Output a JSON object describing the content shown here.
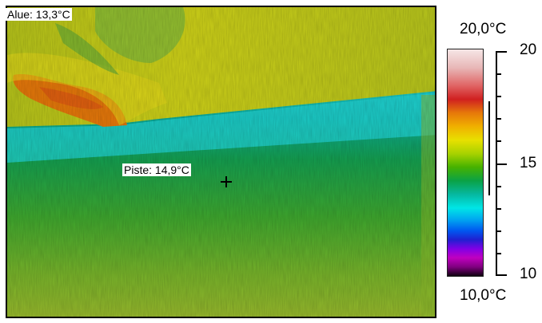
{
  "measurements": {
    "area_label": "Alue: 13,3°C",
    "spot_label": "Piste: 14,9°C"
  },
  "scale": {
    "max_label": "20,0°C",
    "min_label": "10,0°C",
    "tick_labels": [
      "20",
      "15",
      "10"
    ],
    "max_value": 20,
    "min_value": 10
  }
}
